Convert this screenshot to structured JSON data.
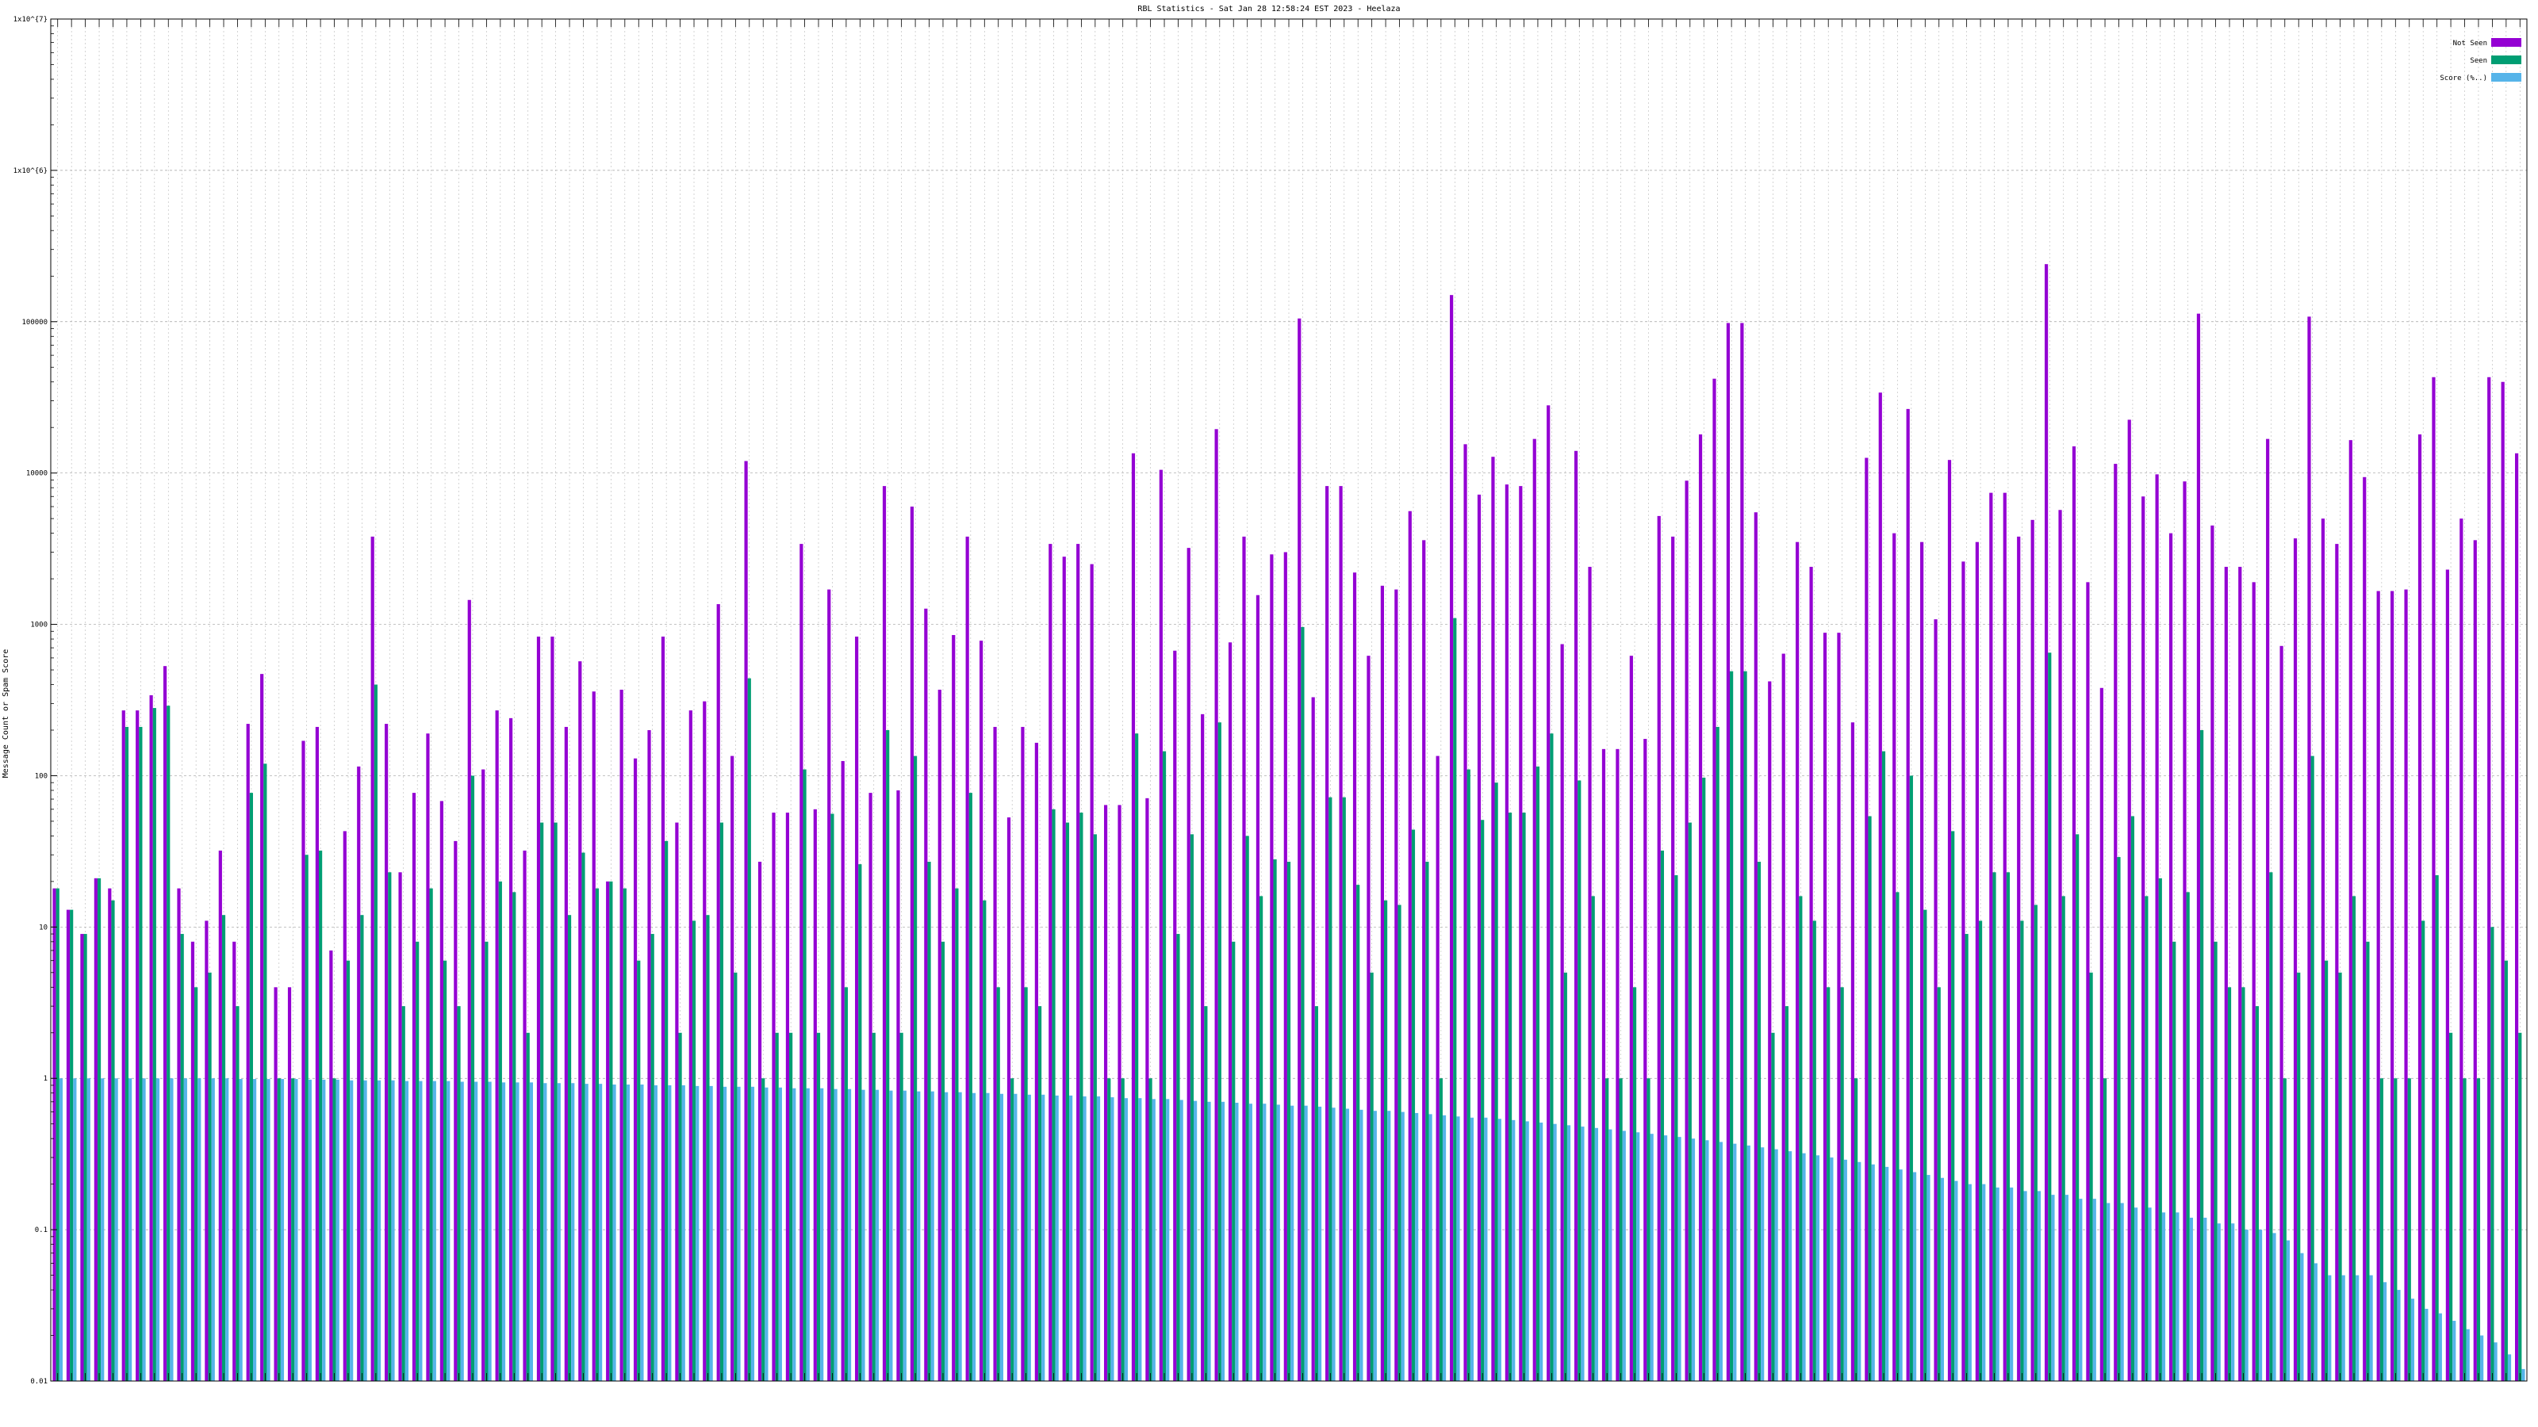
{
  "colors": {
    "not_seen": "#9400d3",
    "seen": "#009e73",
    "score": "#56b4e9"
  },
  "chart_data": {
    "type": "bar",
    "title": "RBL Statistics - Sat Jan 28 12:58:24 EST 2023 - Heelaza",
    "ylabel": "Message Count or Spam Score",
    "yscale": "log",
    "ylim": [
      0.01,
      10000000
    ],
    "y_ticks": [
      "0.01",
      "0.1",
      "1",
      "10",
      "100",
      "1000",
      "10000",
      "100000",
      "1x10^{6}",
      "1x10^{7}"
    ],
    "grid": true,
    "legend_position": "top-right",
    "series": [
      {
        "name": "Not Seen",
        "color": "#9400d3",
        "values": [
          18,
          13,
          9,
          21,
          18,
          270,
          270,
          340,
          530,
          18,
          8,
          11,
          32,
          8,
          220,
          470,
          4,
          4,
          170,
          210,
          7,
          43,
          115,
          3800,
          220,
          23,
          77,
          190,
          68,
          37,
          1450,
          110,
          270,
          240,
          32,
          830,
          830,
          210,
          570,
          360,
          20,
          370,
          130,
          200,
          830,
          49,
          270,
          310,
          1360,
          135,
          12000,
          27,
          57,
          57,
          3400,
          60,
          1700,
          125,
          830,
          77,
          8200,
          80,
          6000,
          1270,
          370,
          850,
          3800,
          780,
          210,
          53,
          210,
          165,
          3400,
          2800,
          3400,
          2500,
          64,
          64,
          13500,
          71,
          10500,
          670,
          3200,
          255,
          19500,
          760,
          3800,
          1560,
          2900,
          3000,
          105000,
          330,
          8200,
          8200,
          2200,
          620,
          1800,
          1700,
          5600,
          3600,
          135,
          150000,
          15500,
          7200,
          12800,
          8400,
          8200,
          16800,
          28000,
          740,
          14000,
          2400,
          150,
          150,
          620,
          175,
          5200,
          3800,
          8900,
          18000,
          42000,
          98000,
          98000,
          5500,
          420,
          640,
          3500,
          2400,
          880,
          880,
          225,
          12600,
          34000,
          4000,
          26500,
          3500,
          1080,
          12200,
          2600,
          3500,
          7400,
          7400,
          3800,
          4900,
          240000,
          5700,
          15000,
          1900,
          380,
          11500,
          22500,
          7000,
          9800,
          4000,
          8800,
          113000,
          4500,
          2400,
          2400,
          1900,
          16800,
          720,
          3700,
          108000,
          5000,
          3400,
          16500,
          9400,
          1660,
          1660,
          1700,
          18000,
          43000,
          2300,
          5000,
          3600,
          43000,
          40000,
          13500
        ]
      },
      {
        "name": "Seen",
        "color": "#009e73",
        "values": [
          18,
          13,
          9,
          21,
          15,
          210,
          210,
          280,
          290,
          9,
          4,
          5,
          12,
          3,
          77,
          120,
          1,
          1,
          30,
          32,
          1,
          6,
          12,
          400,
          23,
          3,
          8,
          18,
          6,
          3,
          100,
          8,
          20,
          17,
          2,
          49,
          49,
          12,
          31,
          18,
          20,
          18,
          6,
          9,
          37,
          2,
          11,
          12,
          49,
          5,
          440,
          1,
          2,
          2,
          110,
          2,
          56,
          4,
          26,
          2,
          200,
          2,
          135,
          27,
          8,
          18,
          77,
          15,
          4,
          1,
          4,
          3,
          60,
          49,
          57,
          41,
          1,
          1,
          190,
          1,
          145,
          9,
          41,
          3,
          225,
          8,
          40,
          16,
          28,
          27,
          960,
          3,
          72,
          72,
          19,
          5,
          15,
          14,
          44,
          27,
          1,
          1100,
          110,
          51,
          90,
          57,
          57,
          115,
          190,
          5,
          93,
          16,
          1,
          1,
          4,
          1,
          32,
          22,
          49,
          97,
          210,
          490,
          490,
          27,
          2,
          3,
          16,
          11,
          4,
          4,
          1,
          54,
          145,
          17,
          100,
          13,
          4,
          43,
          9,
          11,
          23,
          23,
          11,
          14,
          650,
          16,
          41,
          5,
          1,
          29,
          54,
          16,
          21,
          8,
          17,
          200,
          8,
          4,
          4,
          3,
          23,
          1,
          5,
          135,
          6,
          5,
          16,
          8,
          1,
          1,
          1,
          11,
          22,
          2,
          1,
          1,
          10,
          6,
          2
        ]
      },
      {
        "name": "Score (%..)",
        "color": "#56b4e9",
        "values": [
          1.0,
          1.0,
          1.0,
          1.0,
          1.0,
          1.0,
          1.0,
          1.0,
          1.0,
          1.0,
          1.0,
          1.0,
          1.0,
          0.99,
          0.99,
          0.99,
          0.99,
          0.99,
          0.98,
          0.98,
          0.98,
          0.97,
          0.97,
          0.97,
          0.97,
          0.96,
          0.96,
          0.96,
          0.96,
          0.95,
          0.95,
          0.95,
          0.94,
          0.94,
          0.94,
          0.93,
          0.93,
          0.93,
          0.92,
          0.92,
          0.91,
          0.91,
          0.91,
          0.9,
          0.9,
          0.9,
          0.89,
          0.89,
          0.88,
          0.88,
          0.88,
          0.87,
          0.87,
          0.86,
          0.86,
          0.86,
          0.85,
          0.85,
          0.84,
          0.84,
          0.83,
          0.83,
          0.82,
          0.82,
          0.81,
          0.81,
          0.8,
          0.8,
          0.79,
          0.79,
          0.78,
          0.78,
          0.77,
          0.77,
          0.76,
          0.76,
          0.75,
          0.74,
          0.74,
          0.73,
          0.73,
          0.72,
          0.71,
          0.7,
          0.7,
          0.69,
          0.68,
          0.68,
          0.67,
          0.66,
          0.66,
          0.65,
          0.64,
          0.63,
          0.62,
          0.61,
          0.61,
          0.6,
          0.59,
          0.58,
          0.57,
          0.56,
          0.55,
          0.55,
          0.54,
          0.53,
          0.52,
          0.51,
          0.5,
          0.49,
          0.48,
          0.47,
          0.46,
          0.45,
          0.44,
          0.43,
          0.42,
          0.41,
          0.4,
          0.39,
          0.38,
          0.37,
          0.36,
          0.35,
          0.34,
          0.33,
          0.32,
          0.31,
          0.3,
          0.29,
          0.28,
          0.27,
          0.26,
          0.25,
          0.24,
          0.23,
          0.22,
          0.21,
          0.2,
          0.2,
          0.19,
          0.19,
          0.18,
          0.18,
          0.17,
          0.17,
          0.16,
          0.16,
          0.15,
          0.15,
          0.14,
          0.14,
          0.13,
          0.13,
          0.12,
          0.12,
          0.11,
          0.11,
          0.1,
          0.1,
          0.095,
          0.085,
          0.07,
          0.06,
          0.05,
          0.05,
          0.05,
          0.05,
          0.045,
          0.04,
          0.035,
          0.03,
          0.028,
          0.025,
          0.022,
          0.02,
          0.018,
          0.015,
          0.012
        ]
      }
    ]
  }
}
